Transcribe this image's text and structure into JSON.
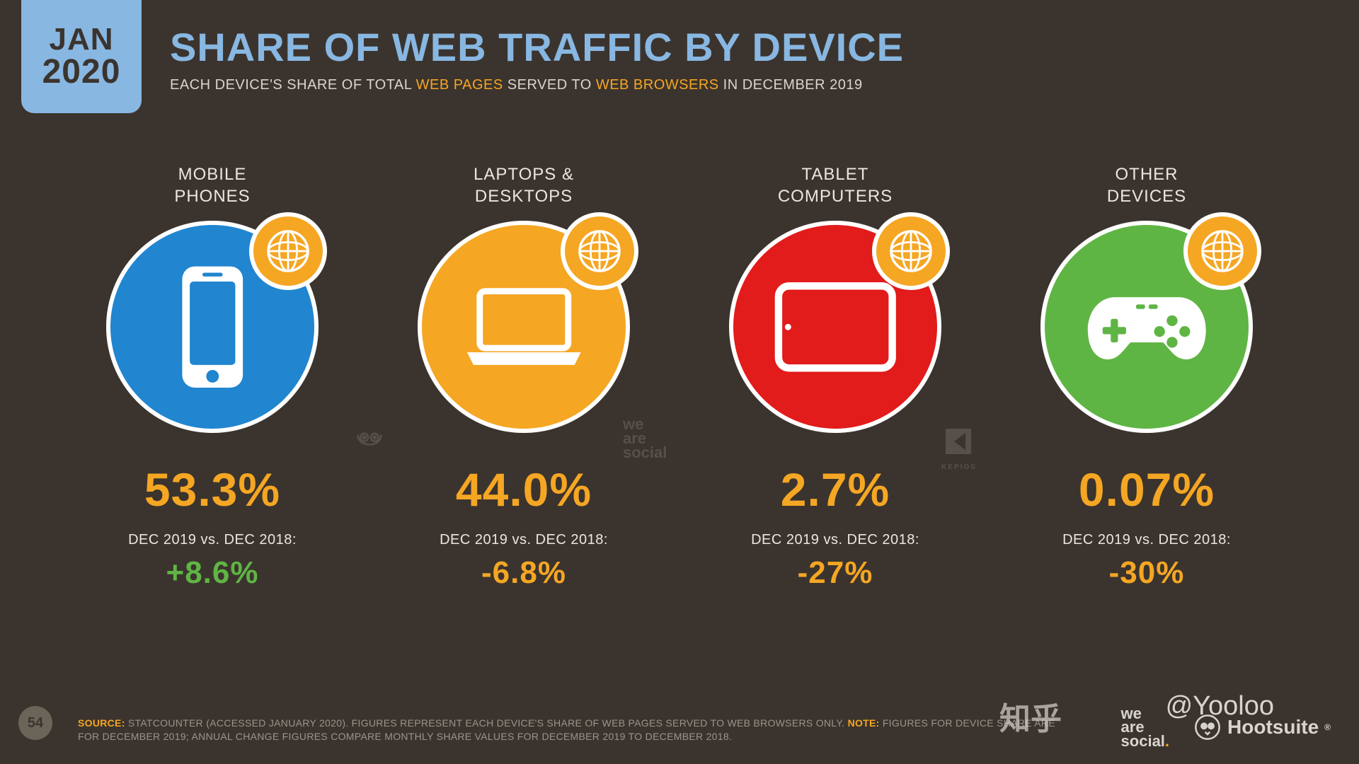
{
  "date": {
    "month": "JAN",
    "year": "2020"
  },
  "title": "SHARE OF WEB TRAFFIC BY DEVICE",
  "subtitle_parts": {
    "p1": "EACH DEVICE'S SHARE OF TOTAL ",
    "h1": "WEB PAGES",
    "p2": " SERVED TO ",
    "h2": "WEB BROWSERS",
    "p3": " IN DECEMBER 2019"
  },
  "colors": {
    "bg": "#3b342e",
    "tab": "#88b7e2",
    "title": "#88b7e2",
    "accent": "#f5a623",
    "positive": "#5fb544",
    "negative": "#f5a623",
    "circle_border": "#ffffff"
  },
  "compare_label": "DEC 2019 vs. DEC 2018:",
  "devices": [
    {
      "label": "MOBILE\nPHONES",
      "circle_color": "#2185d0",
      "icon": "phone",
      "stat": "53.3%",
      "change": "+8.6%",
      "change_color": "#5fb544"
    },
    {
      "label": "LAPTOPS &\nDESKTOPS",
      "circle_color": "#f5a623",
      "icon": "laptop",
      "stat": "44.0%",
      "change": "-6.8%",
      "change_color": "#f5a623"
    },
    {
      "label": "TABLET\nCOMPUTERS",
      "circle_color": "#e21b1b",
      "icon": "tablet",
      "stat": "2.7%",
      "change": "-27%",
      "change_color": "#f5a623"
    },
    {
      "label": "OTHER\nDEVICES",
      "circle_color": "#5fb544",
      "icon": "gamepad",
      "stat": "0.07%",
      "change": "-30%",
      "change_color": "#f5a623"
    }
  ],
  "footer": {
    "source_label": "SOURCE:",
    "source_text": " STATCOUNTER (ACCESSED JANUARY 2020). FIGURES REPRESENT EACH DEVICE'S SHARE OF WEB PAGES SERVED TO WEB BROWSERS ONLY. ",
    "note_label": "NOTE:",
    "note_text": " FIGURES FOR DEVICE SHARE ARE FOR DECEMBER 2019; ANNUAL CHANGE FIGURES COMPARE MONTHLY SHARE VALUES FOR DECEMBER 2019 TO DECEMBER 2018."
  },
  "page_number": "54",
  "logos": {
    "we_are_social": "we\nare\nsocial",
    "hootsuite": "Hootsuite"
  },
  "overlay": {
    "handle": "@Yooloo",
    "zhihu": "知乎"
  },
  "watermarks": {
    "owl_pos": "top:590px;left:490px;",
    "was_pos": "top:590px;left:910px;",
    "kepios_pos": "top:590px;left:1340px;"
  }
}
